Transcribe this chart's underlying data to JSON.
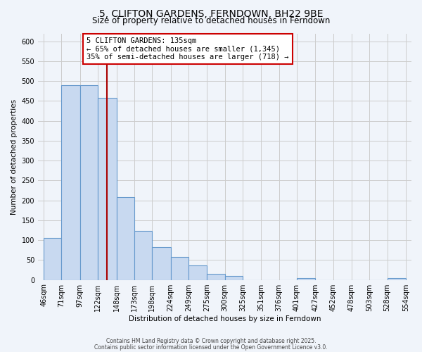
{
  "title": "5, CLIFTON GARDENS, FERNDOWN, BH22 9BE",
  "subtitle": "Size of property relative to detached houses in Ferndown",
  "xlabel": "Distribution of detached houses by size in Ferndown",
  "ylabel": "Number of detached properties",
  "bar_edges": [
    46,
    71,
    97,
    122,
    148,
    173,
    198,
    224,
    249,
    275,
    300,
    325,
    351,
    376,
    401,
    427,
    452,
    478,
    503,
    528,
    554
  ],
  "bar_heights": [
    105,
    490,
    490,
    458,
    208,
    123,
    82,
    58,
    36,
    15,
    10,
    0,
    0,
    0,
    5,
    0,
    0,
    0,
    0,
    5
  ],
  "bar_color": "#c8d9f0",
  "bar_edge_color": "#6699cc",
  "grid_color": "#cccccc",
  "vline_x": 135,
  "vline_color": "#aa0000",
  "annotation_title": "5 CLIFTON GARDENS: 135sqm",
  "annotation_line1": "← 65% of detached houses are smaller (1,345)",
  "annotation_line2": "35% of semi-detached houses are larger (718) →",
  "annotation_box_color": "#ffffff",
  "annotation_box_edge": "#cc0000",
  "ylim": [
    0,
    620
  ],
  "yticks": [
    0,
    50,
    100,
    150,
    200,
    250,
    300,
    350,
    400,
    450,
    500,
    550,
    600
  ],
  "footer1": "Contains HM Land Registry data © Crown copyright and database right 2025.",
  "footer2": "Contains public sector information licensed under the Open Government Licence v3.0.",
  "bg_color": "#f0f4fa",
  "title_fontsize": 10,
  "subtitle_fontsize": 8.5,
  "axis_fontsize": 7.5,
  "tick_fontsize": 7,
  "footer_fontsize": 5.5
}
